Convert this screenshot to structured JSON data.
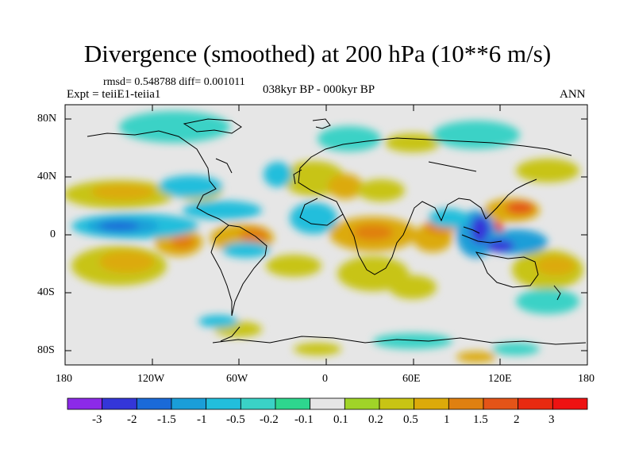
{
  "title": "Divergence (smoothed) at 200 hPa (10**6 m/s)",
  "stats": "rmsd= 0.548788 diff= 0.001011",
  "experiment": "Expt = teiiE1-teiia1",
  "period": "038kyr BP - 000kyr BP",
  "season": "ANN",
  "lat_ticks": [
    "80N",
    "40N",
    "0",
    "40S",
    "80S"
  ],
  "lon_ticks": [
    "180",
    "120W",
    "60W",
    "0",
    "60E",
    "120E",
    "180"
  ],
  "colorbar": {
    "labels": [
      "-3",
      "-2",
      "-1.5",
      "-1",
      "-0.5",
      "-0.2",
      "-0.1",
      "0.1",
      "0.2",
      "0.5",
      "1",
      "1.5",
      "2",
      "3"
    ],
    "colors": [
      "#8c2ae8",
      "#3436d8",
      "#1a6ad8",
      "#1a9ed8",
      "#22bedc",
      "#3ad2c6",
      "#2ed68e",
      "#e6e6e6",
      "#a0d428",
      "#c8c414",
      "#dcaa0a",
      "#e08010",
      "#e45418",
      "#e82a10",
      "#ee1212"
    ]
  }
}
